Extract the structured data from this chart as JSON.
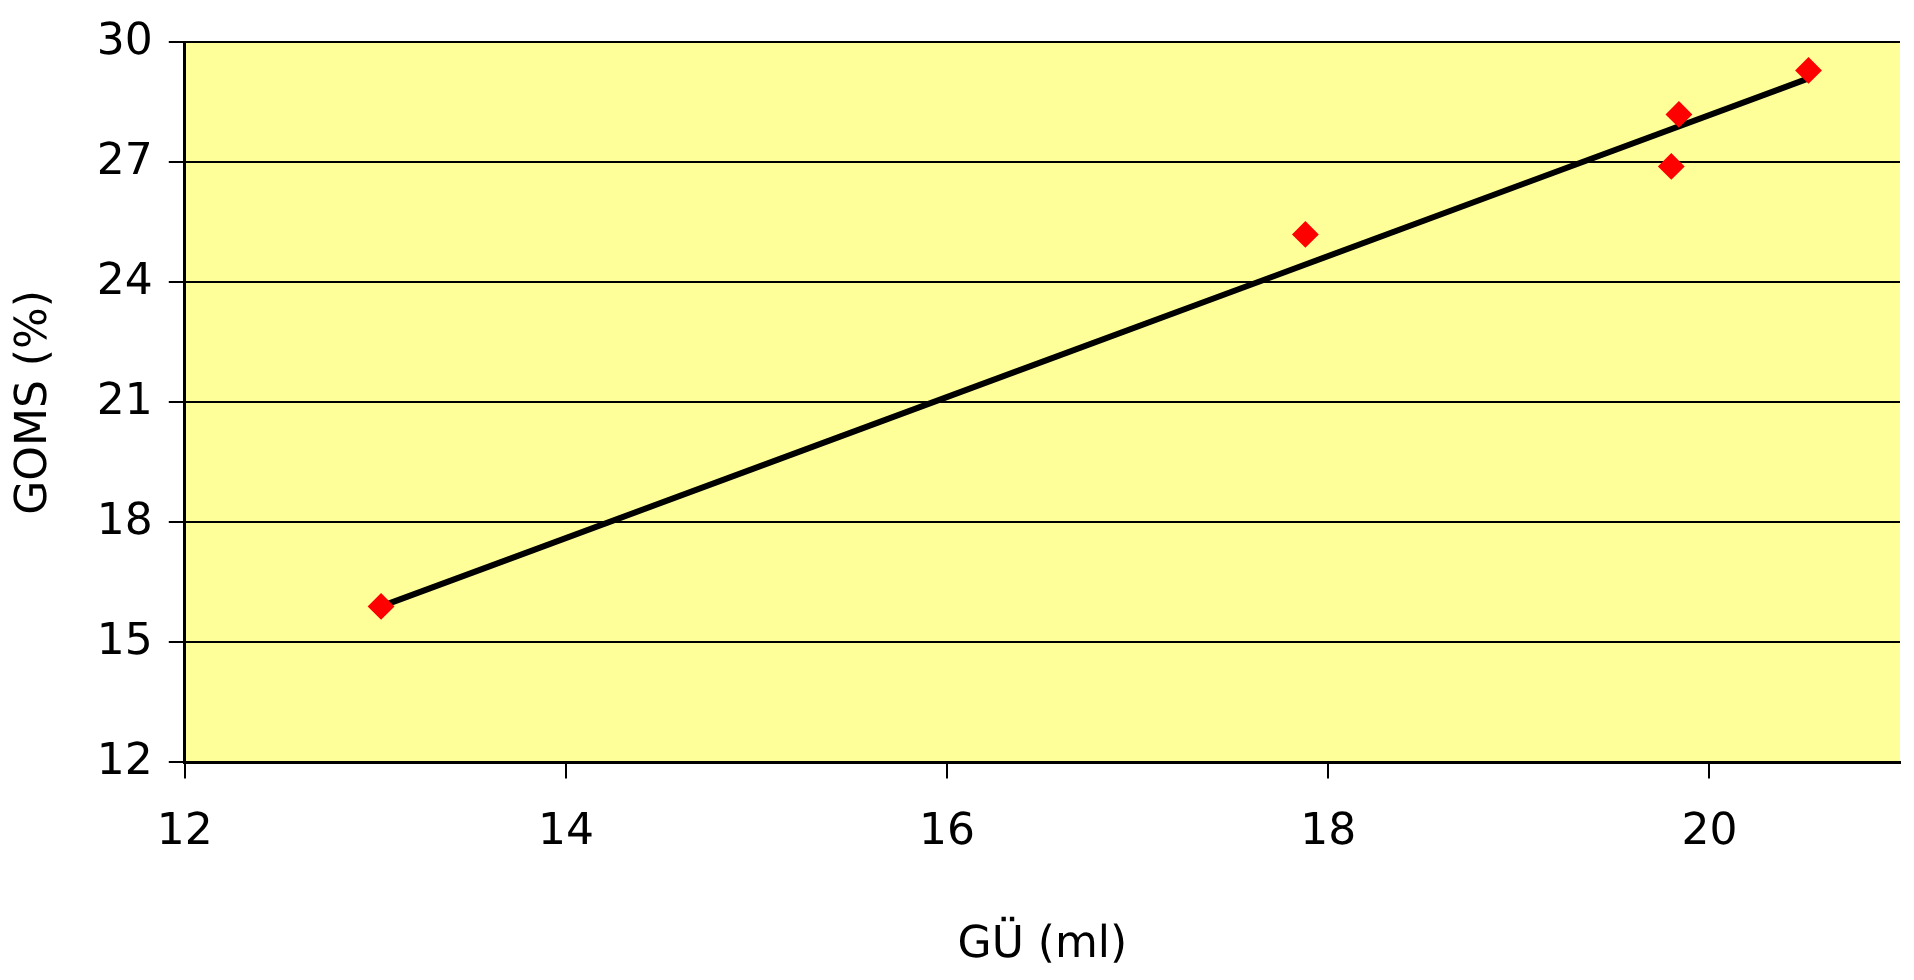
{
  "chart_data": {
    "type": "scatter",
    "xlabel": "GÜ (ml)",
    "ylabel": "GOMS (%)",
    "xlim": [
      12,
      21
    ],
    "xticks": [
      12,
      14,
      16,
      18,
      20
    ],
    "ylim": [
      12,
      30
    ],
    "yticks": [
      12,
      15,
      18,
      21,
      24,
      27,
      30
    ],
    "grid": "y",
    "marker": "diamond",
    "series": [
      {
        "type": "scatter",
        "color": "#ff0000",
        "x": [
          13.03,
          17.88,
          19.84,
          19.8,
          20.52
        ],
        "values": [
          15.9,
          25.2,
          28.2,
          26.9,
          29.3
        ]
      },
      {
        "type": "line",
        "color": "#000000",
        "marker": "none",
        "x": [
          13.03,
          20.52
        ],
        "values": [
          15.9,
          29.1
        ]
      }
    ]
  }
}
